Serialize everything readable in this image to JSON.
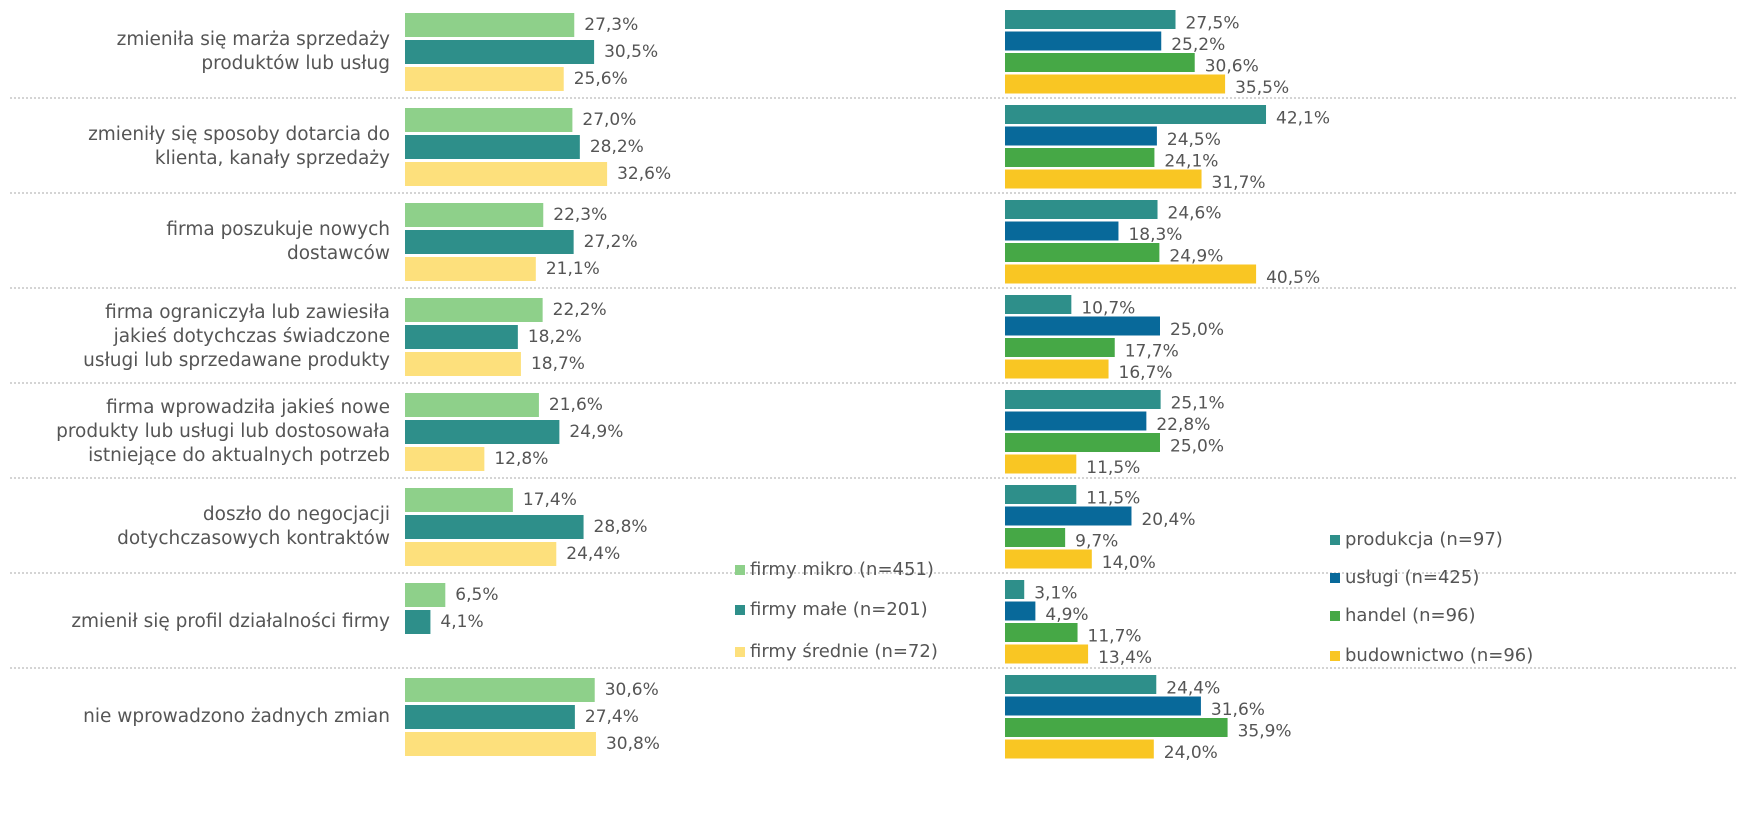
{
  "chart_data": [
    {
      "type": "bar",
      "orientation": "horizontal",
      "categories": [
        "zmieniła się marża sprzedaży\nproduktów lub usług",
        "zmieniły się sposoby dotarcia do\nklienta, kanały sprzedaży",
        "firma poszukuje nowych\ndostawców",
        "firma ograniczyła lub zawiesiła\njakieś dotychczas świadczone\nusługi lub sprzedawane produkty",
        "firma wprowadziła jakieś nowe\nprodukty lub usługi lub dostosowała\nistniejące do aktualnych potrzeb",
        "doszło do negocjacji\ndotychczasowych kontraktów",
        "zmienił się profil działalności firmy",
        "nie wprowadzono żadnych zmian"
      ],
      "series": [
        {
          "name": "firmy mikro (n=451)",
          "color": "#8ed08a",
          "values": [
            27.3,
            27.0,
            22.3,
            22.2,
            21.6,
            17.4,
            6.5,
            30.6
          ],
          "value_labels": [
            "27,3%",
            "27,0%",
            "22,3%",
            "22,2%",
            "21,6%",
            "17,4%",
            "6,5%",
            "30,6%"
          ]
        },
        {
          "name": "firmy małe (n=201)",
          "color": "#2e8f8a",
          "values": [
            30.5,
            28.2,
            27.2,
            18.2,
            24.9,
            28.8,
            4.1,
            27.4
          ],
          "value_labels": [
            "30,5%",
            "28,2%",
            "27,2%",
            "18,2%",
            "24,9%",
            "28,8%",
            "4,1%",
            "27,4%"
          ]
        },
        {
          "name": "firmy średnie (n=72)",
          "color": "#fde07c",
          "values": [
            25.6,
            32.6,
            21.1,
            18.7,
            12.8,
            24.4,
            null,
            30.8
          ],
          "value_labels": [
            "25,6%",
            "32,6%",
            "21,1%",
            "18,7%",
            "12,8%",
            "24,4%",
            null,
            "30,8%"
          ]
        }
      ]
    },
    {
      "type": "bar",
      "orientation": "horizontal",
      "series": [
        {
          "name": "produkcja (n=97)",
          "color": "#2e8f8a",
          "values": [
            27.5,
            42.1,
            24.6,
            10.7,
            25.1,
            11.5,
            3.1,
            24.4
          ],
          "value_labels": [
            "27,5%",
            "42,1%",
            "24,6%",
            "10,7%",
            "25,1%",
            "11,5%",
            "3,1%",
            "24,4%"
          ]
        },
        {
          "name": "usługi (n=425)",
          "color": "#08699a",
          "values": [
            25.2,
            24.5,
            18.3,
            25.0,
            22.8,
            20.4,
            4.9,
            31.6
          ],
          "value_labels": [
            "25,2%",
            "24,5%",
            "18,3%",
            "25,0%",
            "22,8%",
            "20,4%",
            "4,9%",
            "31,6%"
          ]
        },
        {
          "name": "handel (n=96)",
          "color": "#46a846",
          "values": [
            30.6,
            24.1,
            24.9,
            17.7,
            25.0,
            9.7,
            11.7,
            35.9
          ],
          "value_labels": [
            "30,6%",
            "24,1%",
            "24,9%",
            "17,7%",
            "25,0%",
            "9,7%",
            "11,7%",
            "35,9%"
          ]
        },
        {
          "name": "budownictwo (n=96)",
          "color": "#f9c623",
          "values": [
            35.5,
            31.7,
            40.5,
            16.7,
            11.5,
            14.0,
            13.4,
            24.0
          ],
          "value_labels": [
            "35,5%",
            "31,7%",
            "40,5%",
            "16,7%",
            "11,5%",
            "14,0%",
            "13,4%",
            "24,0%"
          ]
        }
      ]
    }
  ]
}
